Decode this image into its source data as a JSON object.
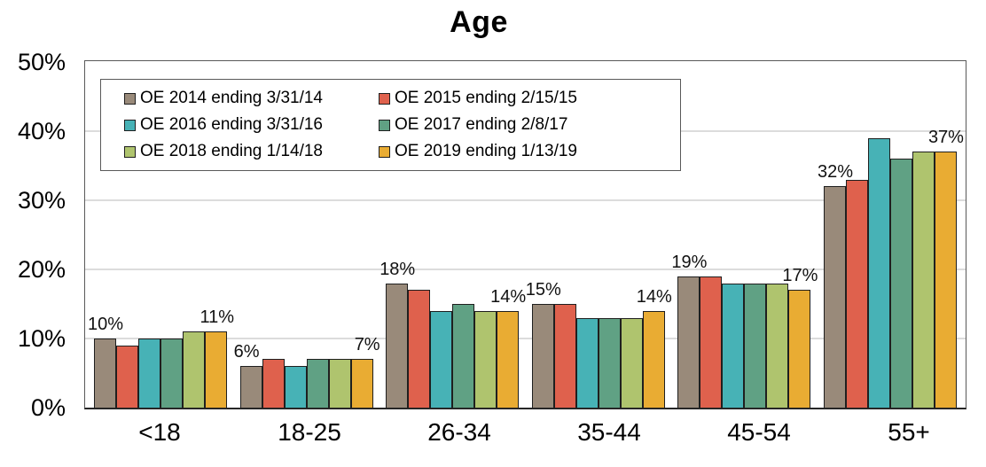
{
  "chart_data": {
    "type": "bar",
    "title": "Age",
    "xlabel": "",
    "ylabel": "",
    "ylim": [
      0,
      50
    ],
    "y_ticks": [
      "0%",
      "10%",
      "20%",
      "30%",
      "40%",
      "50%"
    ],
    "y_tick_values": [
      0,
      10,
      20,
      30,
      40,
      50
    ],
    "gridlines": [
      10,
      20,
      30,
      40
    ],
    "grid": "horizontal",
    "legend_position": "top-left-inside",
    "categories": [
      "<18",
      "18-25",
      "26-34",
      "35-44",
      "45-54",
      "55+"
    ],
    "series": [
      {
        "name": "OE 2014 ending 3/31/14",
        "color": "#998A7A",
        "values": [
          10,
          6,
          18,
          15,
          19,
          32
        ]
      },
      {
        "name": "OE 2015 ending 2/15/15",
        "color": "#DF614D",
        "values": [
          9,
          7,
          17,
          15,
          19,
          33
        ]
      },
      {
        "name": "OE 2016 ending 3/31/16",
        "color": "#47B2B6",
        "values": [
          10,
          6,
          14,
          13,
          18,
          39
        ]
      },
      {
        "name": "OE 2017 ending 2/8/17",
        "color": "#60A184",
        "values": [
          10,
          7,
          15,
          13,
          18,
          36
        ]
      },
      {
        "name": "OE 2018 ending 1/14/18",
        "color": "#AFC46E",
        "values": [
          11,
          7,
          14,
          13,
          18,
          37
        ]
      },
      {
        "name": "OE 2019 ending 1/13/19",
        "color": "#E9AC33",
        "values": [
          11,
          7,
          14,
          14,
          17,
          37
        ]
      }
    ],
    "bar_labels": [
      {
        "category": "<18",
        "first": "10%",
        "last": "11%"
      },
      {
        "category": "18-25",
        "first": "6%",
        "last": "7%"
      },
      {
        "category": "26-34",
        "first": "18%",
        "last": "14%"
      },
      {
        "category": "35-44",
        "first": "15%",
        "last": "14%"
      },
      {
        "category": "45-54",
        "first": "19%",
        "last": "17%"
      },
      {
        "category": "55+",
        "first": "32%",
        "last": "37%"
      }
    ],
    "colors": {
      "grid": "#DCDCDC",
      "axis": "#262626",
      "plot_border": "#595959",
      "bar_border": "#1F1F1F",
      "text": "#000000",
      "background": "#FFFFFF"
    }
  }
}
